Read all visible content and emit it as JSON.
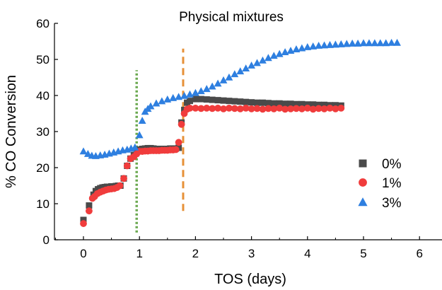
{
  "chart_data": {
    "type": "scatter",
    "title": "Physical mixtures",
    "xlabel": "TOS (days)",
    "ylabel": "% CO Conversion",
    "xlim": [
      -1,
      6.5
    ],
    "ylim": [
      0,
      60
    ],
    "xticks": [
      0,
      1,
      2,
      3,
      4,
      5,
      6
    ],
    "yticks": [
      0,
      10,
      20,
      30,
      40,
      50,
      60
    ],
    "grid": false,
    "legend_position": "right",
    "series": [
      {
        "name": "0%",
        "marker": "square",
        "color": "#4a4a4a",
        "x": [
          0.0,
          0.1,
          0.18,
          0.22,
          0.26,
          0.3,
          0.34,
          0.38,
          0.42,
          0.46,
          0.5,
          0.54,
          0.58,
          0.62,
          0.66,
          0.72,
          0.78,
          0.84,
          0.9,
          0.95,
          1.0,
          1.05,
          1.1,
          1.15,
          1.2,
          1.25,
          1.3,
          1.35,
          1.4,
          1.45,
          1.5,
          1.55,
          1.6,
          1.65,
          1.7,
          1.75,
          1.8,
          1.85,
          1.9,
          2.0,
          2.1,
          2.2,
          2.3,
          2.4,
          2.5,
          2.6,
          2.7,
          2.8,
          2.9,
          3.0,
          3.1,
          3.2,
          3.3,
          3.4,
          3.5,
          3.6,
          3.7,
          3.8,
          3.9,
          4.0,
          4.1,
          4.2,
          4.3,
          4.4,
          4.5,
          4.6
        ],
        "y": [
          5.5,
          9.5,
          12.5,
          13.5,
          14.0,
          14.3,
          14.5,
          14.6,
          14.7,
          14.7,
          14.8,
          14.8,
          14.9,
          15.0,
          15.0,
          17.0,
          20.5,
          22.5,
          23.5,
          24.5,
          25.0,
          25.2,
          25.3,
          25.4,
          25.4,
          25.3,
          25.2,
          25.2,
          25.2,
          25.2,
          25.2,
          25.3,
          25.3,
          25.3,
          25.5,
          32.5,
          36.0,
          38.0,
          38.5,
          39.0,
          39.0,
          38.9,
          38.8,
          38.7,
          38.6,
          38.5,
          38.4,
          38.3,
          38.2,
          38.1,
          38.0,
          38.0,
          37.9,
          37.8,
          37.8,
          37.7,
          37.7,
          37.6,
          37.6,
          37.5,
          37.5,
          37.4,
          37.4,
          37.3,
          37.3,
          37.2
        ]
      },
      {
        "name": "1%",
        "marker": "circle",
        "color": "#f03c3c",
        "x": [
          0.0,
          0.1,
          0.16,
          0.2,
          0.25,
          0.3,
          0.35,
          0.4,
          0.45,
          0.5,
          0.55,
          0.6,
          0.65,
          0.72,
          0.78,
          0.84,
          0.9,
          0.95,
          1.0,
          1.05,
          1.1,
          1.15,
          1.2,
          1.25,
          1.3,
          1.35,
          1.4,
          1.45,
          1.5,
          1.55,
          1.6,
          1.65,
          1.7,
          1.75,
          1.8,
          1.85,
          1.9,
          2.0,
          2.1,
          2.2,
          2.3,
          2.4,
          2.5,
          2.6,
          2.7,
          2.8,
          2.9,
          3.0,
          3.1,
          3.2,
          3.3,
          3.4,
          3.5,
          3.6,
          3.7,
          3.8,
          3.9,
          4.0,
          4.1,
          4.2,
          4.3,
          4.4,
          4.5,
          4.6
        ],
        "y": [
          4.5,
          8.0,
          11.5,
          12.0,
          12.8,
          13.2,
          13.5,
          13.8,
          14.0,
          14.1,
          14.2,
          14.5,
          15.0,
          17.0,
          20.5,
          22.5,
          23.0,
          23.8,
          24.5,
          24.5,
          24.6,
          24.6,
          24.7,
          24.7,
          24.7,
          24.7,
          24.8,
          24.8,
          24.8,
          24.9,
          24.9,
          25.0,
          27.0,
          32.0,
          35.0,
          36.2,
          36.5,
          36.5,
          36.4,
          36.5,
          36.4,
          36.5,
          36.3,
          36.5,
          36.4,
          36.3,
          36.5,
          36.3,
          36.4,
          36.2,
          36.4,
          36.3,
          36.5,
          36.2,
          36.3,
          36.4,
          36.3,
          36.5,
          36.2,
          36.4,
          36.3,
          36.5,
          36.3,
          36.5
        ]
      },
      {
        "name": "3%",
        "marker": "triangle",
        "color": "#2e7fe0",
        "x": [
          0.0,
          0.08,
          0.15,
          0.22,
          0.3,
          0.38,
          0.46,
          0.54,
          0.62,
          0.7,
          0.78,
          0.85,
          0.92,
          1.0,
          1.05,
          1.1,
          1.15,
          1.2,
          1.3,
          1.4,
          1.5,
          1.6,
          1.7,
          1.8,
          1.9,
          2.0,
          2.1,
          2.2,
          2.3,
          2.4,
          2.5,
          2.6,
          2.7,
          2.8,
          2.9,
          3.0,
          3.1,
          3.2,
          3.3,
          3.4,
          3.5,
          3.6,
          3.7,
          3.8,
          3.9,
          4.0,
          4.1,
          4.2,
          4.3,
          4.4,
          4.5,
          4.6,
          4.7,
          4.8,
          4.9,
          5.0,
          5.1,
          5.2,
          5.3,
          5.4,
          5.5,
          5.6
        ],
        "y": [
          24.5,
          23.8,
          23.3,
          23.2,
          23.4,
          23.6,
          23.9,
          24.2,
          24.5,
          24.8,
          25.0,
          25.3,
          25.6,
          29.0,
          33.0,
          35.5,
          36.3,
          37.0,
          37.8,
          38.4,
          38.9,
          39.3,
          39.6,
          39.9,
          40.3,
          40.7,
          41.2,
          41.8,
          42.5,
          43.3,
          44.2,
          45.0,
          45.9,
          46.7,
          47.5,
          48.3,
          49.0,
          49.7,
          50.4,
          51.0,
          51.5,
          52.0,
          52.4,
          52.8,
          53.1,
          53.4,
          53.6,
          53.8,
          53.9,
          54.0,
          54.1,
          54.2,
          54.3,
          54.4,
          54.4,
          54.5,
          54.5,
          54.5,
          54.5,
          54.5,
          54.6,
          54.6
        ]
      }
    ],
    "annotations": [
      {
        "type": "vertical-line",
        "x": 0.95,
        "y_range": [
          2,
          47
        ],
        "style": "dotted",
        "color": "#6aa84f"
      },
      {
        "type": "vertical-line",
        "x": 1.78,
        "y_range": [
          8,
          53
        ],
        "style": "dashed",
        "color": "#e69138"
      }
    ]
  }
}
